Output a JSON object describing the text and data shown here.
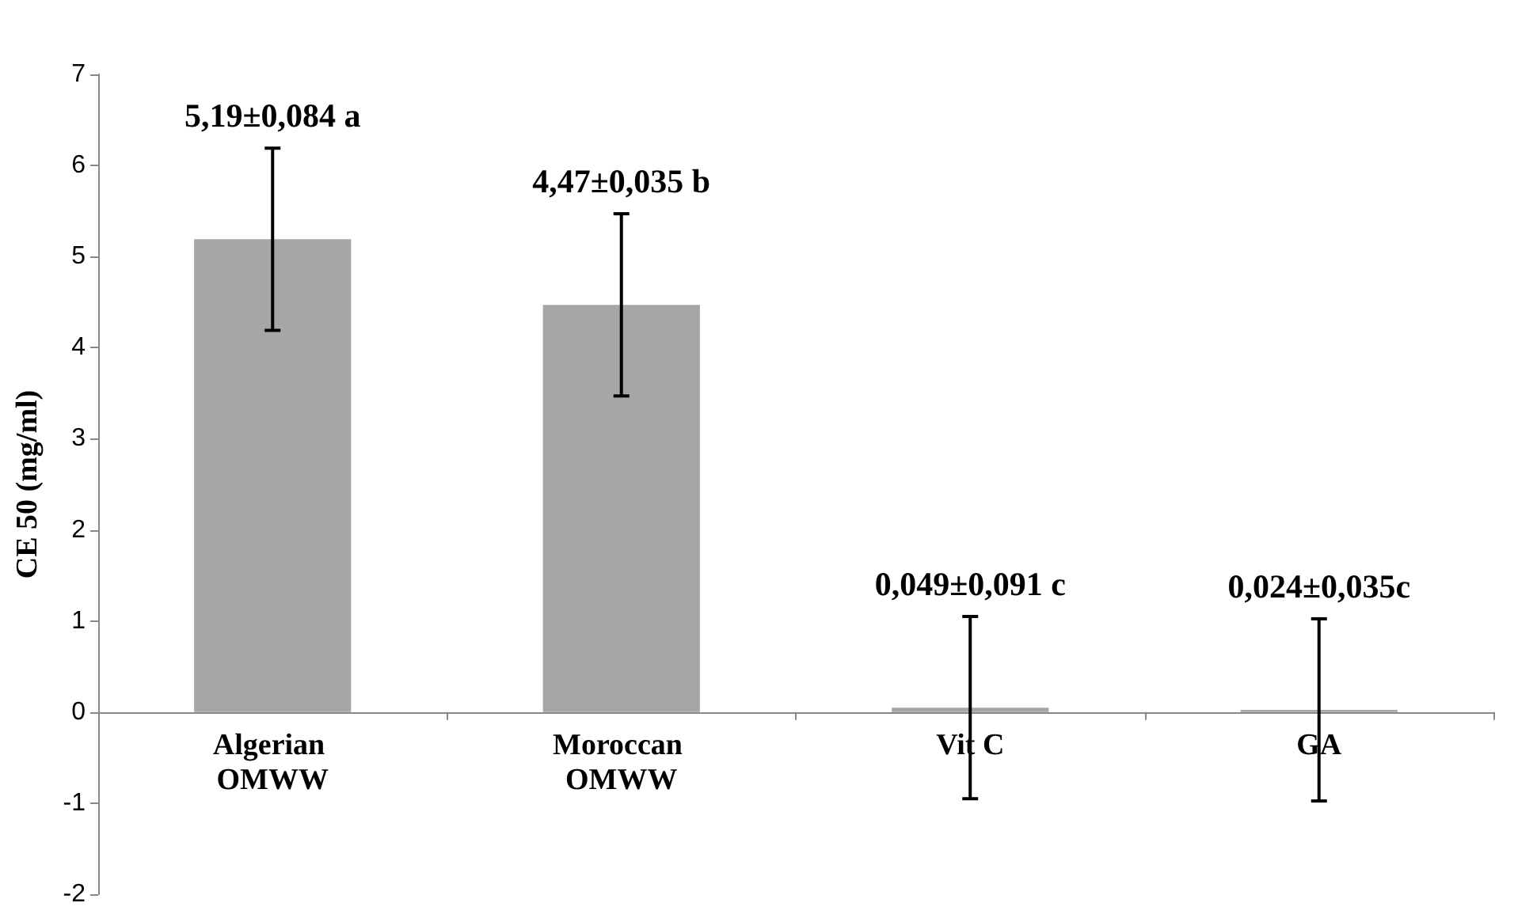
{
  "chart_data": {
    "type": "bar",
    "ylabel": "CE 50 (mg/ml)",
    "categories": [
      "Algerian OMWW",
      "Moroccan OMWW",
      "Vit C",
      "GA"
    ],
    "values": [
      5.19,
      4.47,
      0.049,
      0.024
    ],
    "color": "#a6a6a6",
    "errors": [
      1,
      1,
      1,
      1
    ],
    "value_labels": [
      "5,19±0,084 a",
      "4,47±0,035 b",
      "0,049±0,091 c",
      "0,024±0,035c"
    ],
    "ylim": [
      -2,
      7
    ],
    "yticks": [
      -2,
      -1,
      0,
      1,
      2,
      3,
      4,
      5,
      6,
      7
    ],
    "data_labels": false
  }
}
